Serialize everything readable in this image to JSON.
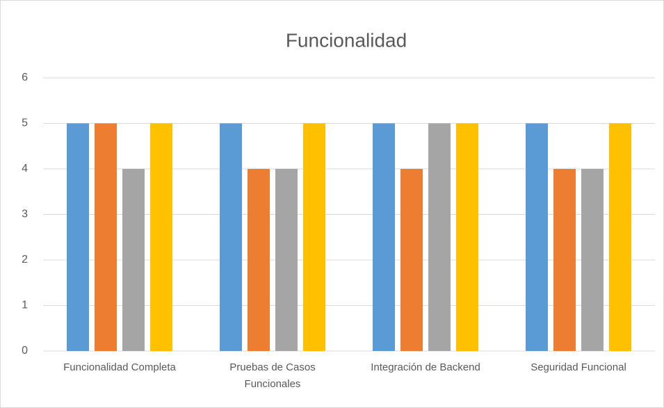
{
  "chart_data": {
    "type": "bar",
    "title": "Funcionalidad",
    "categories": [
      "Funcionalidad Completa",
      "Pruebas de Casos Funcionales",
      "Integración de Backend",
      "Seguridad Funcional"
    ],
    "series": [
      {
        "color": "#5b9bd5",
        "values": [
          5,
          5,
          5,
          5
        ]
      },
      {
        "color": "#ed7d31",
        "values": [
          5,
          4,
          4,
          4
        ]
      },
      {
        "color": "#a5a5a5",
        "values": [
          4,
          4,
          5,
          4
        ]
      },
      {
        "color": "#ffc000",
        "values": [
          5,
          5,
          5,
          5
        ]
      }
    ],
    "ylim": [
      0,
      6
    ],
    "yticks": [
      0,
      1,
      2,
      3,
      4,
      5,
      6
    ],
    "grid": true
  }
}
